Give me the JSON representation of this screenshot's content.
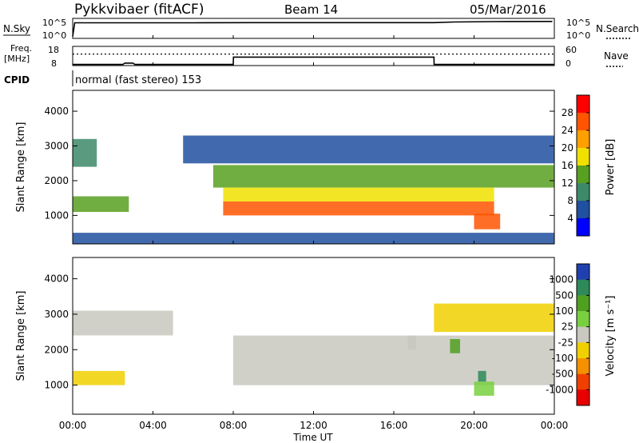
{
  "header": {
    "station": "Pykkvibaer (fitACF)",
    "beam": "Beam 14",
    "date": "05/Mar/2016"
  },
  "strips": {
    "nsky_label": "N.Sky",
    "nsearch_label": "N.Search",
    "noise_top_tick": "10^5",
    "noise_bottom_tick": "10^0",
    "freq_label": "Freq.",
    "freq_unit": "[MHz]",
    "freq_ticks": [
      "18",
      "8"
    ],
    "nave_label": "Nave",
    "nave_ticks": [
      "60",
      "0"
    ],
    "cpid_label": "CPID",
    "cpid_text": "normal (fast stereo) 153"
  },
  "axes": {
    "y_label": "Slant Range [km]",
    "y_ticks": [
      1000,
      2000,
      3000,
      4000
    ],
    "x_label": "Time UT",
    "x_ticks": [
      "00:00",
      "04:00",
      "08:00",
      "12:00",
      "16:00",
      "20:00",
      "00:00"
    ]
  },
  "colorbars": {
    "power": {
      "label": "Power [dB]",
      "ticks": [
        "28",
        "24",
        "20",
        "16",
        "12",
        "8",
        "4"
      ],
      "colors": [
        "#ff0000",
        "#ff5500",
        "#ffa000",
        "#f0e000",
        "#58a020",
        "#3d8a6a",
        "#2050a0",
        "#0000ff"
      ]
    },
    "velocity": {
      "label": "Velocity [m s⁻¹]",
      "ticks": [
        "1000",
        "500",
        "100",
        "25",
        "-25",
        "-100",
        "-500",
        "-1000"
      ],
      "colors": [
        "#2040b0",
        "#2e8a58",
        "#50a020",
        "#78d040",
        "#c8c8c0",
        "#f0d000",
        "#f59000",
        "#f04000",
        "#e80000"
      ]
    }
  },
  "chart_data": [
    {
      "type": "line",
      "panel": "noise",
      "x_unit": "hours UT",
      "y_scale": "log",
      "ylim_exponent": [
        0,
        5
      ],
      "series": [
        {
          "name": "N.Sky",
          "x": [
            0,
            0.1,
            3,
            6,
            9,
            12,
            15,
            18,
            19,
            21,
            23.9
          ],
          "y_exponent": [
            0.5,
            3.9,
            3.9,
            3.9,
            3.95,
            3.95,
            3.95,
            3.95,
            4.1,
            4.2,
            4.25
          ]
        },
        {
          "name": "N.Search",
          "x": [
            0,
            24
          ],
          "y_exponent": [
            3.4,
            3.4
          ]
        }
      ]
    },
    {
      "type": "line",
      "panel": "frequency / nave",
      "x_unit": "hours UT",
      "series": [
        {
          "name": "Freq.",
          "unit": "MHz",
          "ylim": [
            8,
            18
          ],
          "x": [
            0,
            2.5,
            2.6,
            3.0,
            3.1,
            8.0,
            8.01,
            18.0,
            18.01,
            24
          ],
          "y": [
            8.6,
            8.6,
            9.3,
            9.3,
            8.6,
            8.6,
            12.4,
            12.4,
            8.6,
            8.6
          ]
        },
        {
          "name": "Nave",
          "ylim": [
            0,
            60
          ],
          "x": [
            0,
            24
          ],
          "y": [
            36,
            36
          ]
        }
      ]
    },
    {
      "type": "heatmap",
      "panel": "power",
      "x_unit": "hours UT",
      "xlim": [
        0,
        24
      ],
      "y_unit": "km",
      "ylim": [
        180,
        4600
      ],
      "value_unit": "dB",
      "zlim": [
        0,
        32
      ],
      "regions": [
        {
          "x": [
            0.0,
            1.2
          ],
          "y": [
            2400,
            3200
          ],
          "z": 10
        },
        {
          "x": [
            0.0,
            2.8
          ],
          "y": [
            1100,
            1550
          ],
          "z": 14
        },
        {
          "x": [
            5.5,
            24.0
          ],
          "y": [
            2500,
            3300
          ],
          "z": 7
        },
        {
          "x": [
            7.0,
            24.0
          ],
          "y": [
            1800,
            2450
          ],
          "z": 12
        },
        {
          "x": [
            7.5,
            21.0
          ],
          "y": [
            1400,
            1800
          ],
          "z": 17
        },
        {
          "x": [
            7.5,
            21.0
          ],
          "y": [
            1000,
            1400
          ],
          "z": 27
        },
        {
          "x": [
            20.0,
            21.3
          ],
          "y": [
            600,
            1050
          ],
          "z": 24
        },
        {
          "x": [
            0.0,
            24.0
          ],
          "y": [
            180,
            500
          ],
          "z": 5
        }
      ]
    },
    {
      "type": "heatmap",
      "panel": "velocity",
      "x_unit": "hours UT",
      "xlim": [
        0,
        24
      ],
      "y_unit": "km",
      "ylim": [
        180,
        4600
      ],
      "value_unit": "m s^-1",
      "zlim": [
        -1200,
        1200
      ],
      "regions": [
        {
          "x": [
            0.0,
            5.0
          ],
          "y": [
            2400,
            3100
          ],
          "z": 0
        },
        {
          "x": [
            8.0,
            24.0
          ],
          "y": [
            1000,
            2400
          ],
          "z": 0
        },
        {
          "x": [
            0.0,
            2.6
          ],
          "y": [
            1000,
            1400
          ],
          "z": -150
        },
        {
          "x": [
            16.7,
            17.1
          ],
          "y": [
            2000,
            2400
          ],
          "z": 80
        },
        {
          "x": [
            18.8,
            19.3
          ],
          "y": [
            1900,
            2300
          ],
          "z": 600
        },
        {
          "x": [
            20.0,
            21.0
          ],
          "y": [
            700,
            1100
          ],
          "z": 200
        },
        {
          "x": [
            20.2,
            20.6
          ],
          "y": [
            1100,
            1400
          ],
          "z": 800
        },
        {
          "x": [
            18.0,
            24.0
          ],
          "y": [
            2500,
            3300
          ],
          "z": -200
        }
      ]
    }
  ]
}
